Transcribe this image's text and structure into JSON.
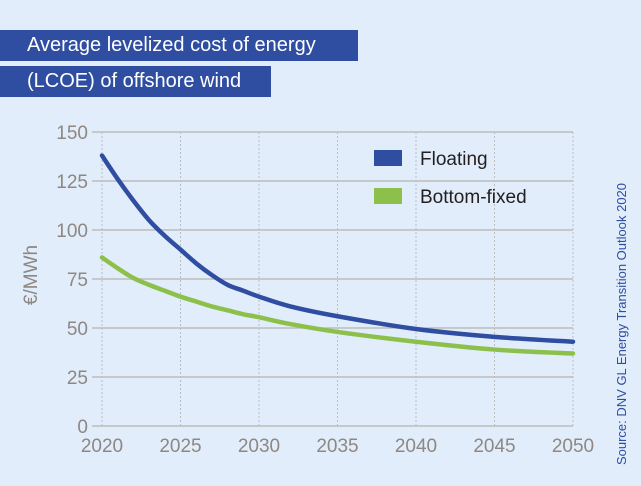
{
  "title": {
    "line1": "Average levelized cost of energy",
    "line2": "(LCOE) of offshore wind"
  },
  "source": "Source: DNV GL Energy Transition Outlook 2020",
  "colors": {
    "background": "#E1EDFA",
    "banner": "#2F4DA1",
    "floating": "#2F4DA1",
    "bottom_fixed": "#8CC04A",
    "grid": "#BDBDBD",
    "tick_text": "#8E8782"
  },
  "chart_data": {
    "type": "line",
    "title": "Average levelized cost of energy (LCOE) of offshore wind",
    "xlabel": "",
    "ylabel": "€/MWh",
    "xlim": [
      2020,
      2050
    ],
    "ylim": [
      0,
      150
    ],
    "xticks": [
      2020,
      2025,
      2030,
      2035,
      2040,
      2045,
      2050
    ],
    "yticks": [
      0,
      25,
      50,
      75,
      100,
      125,
      150
    ],
    "grid": true,
    "legend_position": "top-right",
    "series": [
      {
        "name": "Floating",
        "color": "#2F4DA1",
        "x": [
          2020,
          2021,
          2022,
          2023,
          2024,
          2025,
          2026,
          2027,
          2028,
          2029,
          2030,
          2032,
          2035,
          2040,
          2045,
          2050
        ],
        "y": [
          138,
          126,
          115,
          105,
          97,
          90,
          83,
          77,
          72,
          69,
          66,
          61,
          56,
          49.5,
          45.5,
          43
        ]
      },
      {
        "name": "Bottom-fixed",
        "color": "#8CC04A",
        "x": [
          2020,
          2021,
          2022,
          2023,
          2024,
          2025,
          2026,
          2027,
          2028,
          2029,
          2030,
          2032,
          2035,
          2040,
          2045,
          2050
        ],
        "y": [
          86,
          80.5,
          75.5,
          72,
          69,
          66,
          63.5,
          61,
          59,
          57,
          55.5,
          52,
          48,
          43,
          39,
          37
        ]
      }
    ],
    "source": "Source: DNV GL Energy Transition Outlook 2020"
  }
}
